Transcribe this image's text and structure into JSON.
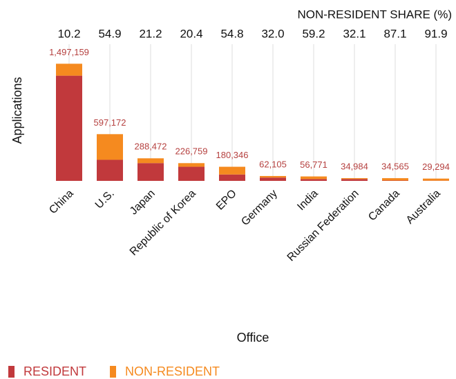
{
  "chart_data": {
    "type": "bar",
    "stacked": true,
    "categories": [
      "China",
      "U.S.",
      "Japan",
      "Republic of Korea",
      "EPO",
      "Germany",
      "India",
      "Russian Federation",
      "Canada",
      "Australia"
    ],
    "series": [
      {
        "name": "RESIDENT",
        "color": "#c1393c",
        "values": [
          1344449,
          269325,
          227316,
          180500,
          81516,
          42231,
          23163,
          23754,
          4459,
          2373
        ]
      },
      {
        "name": "NON-RESIDENT",
        "color": "#f58a1f",
        "values": [
          152710,
          327847,
          61156,
          46259,
          98830,
          19874,
          33608,
          11230,
          30106,
          26921
        ]
      }
    ],
    "totals": {
      "values": [
        1497159,
        597172,
        288472,
        226759,
        180346,
        62105,
        56771,
        34984,
        34565,
        29294
      ],
      "value_labels": [
        "1,497,159",
        "597,172",
        "288,472",
        "226,759",
        "180,346",
        "62,105",
        "56,771",
        "34,984",
        "34,565",
        "29,294"
      ]
    },
    "non_resident_share": {
      "title": "NON-RESIDENT SHARE (%)",
      "values": [
        10.2,
        54.9,
        21.2,
        20.4,
        54.8,
        32.0,
        59.2,
        32.1,
        87.1,
        91.9
      ],
      "value_labels": [
        "10.2",
        "54.9",
        "21.2",
        "20.4",
        "54.8",
        "32.0",
        "59.2",
        "32.1",
        "87.1",
        "91.9"
      ]
    },
    "ylabel": "Applications",
    "xlabel": "Office",
    "ylim": [
      0,
      1500000
    ],
    "grid": true,
    "legend": "bottom-left"
  }
}
